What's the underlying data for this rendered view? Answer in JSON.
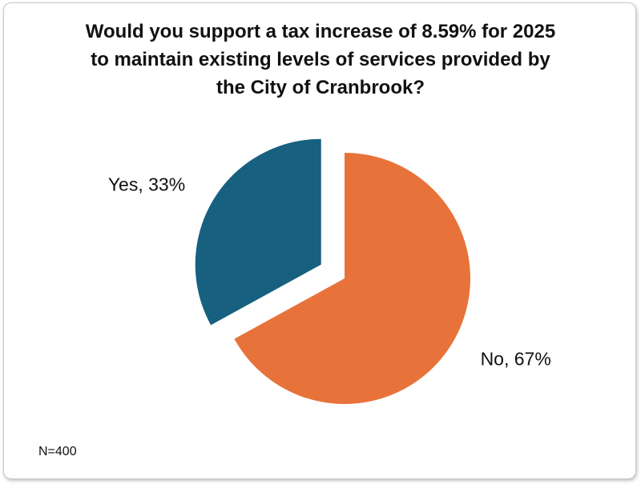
{
  "chart_data": {
    "type": "pie",
    "title": "Would you support a tax increase of 8.59% for 2025\nto maintain existing levels of services provided by\nthe City of Cranbrook?",
    "slices": [
      {
        "label": "Yes, 33%",
        "category": "Yes",
        "value": 33,
        "color": "#17607f",
        "exploded": true
      },
      {
        "label": "No, 67%",
        "category": "No",
        "value": 67,
        "color": "#e8733a",
        "exploded": false
      }
    ],
    "legend": "none",
    "footnote": "N=400"
  }
}
